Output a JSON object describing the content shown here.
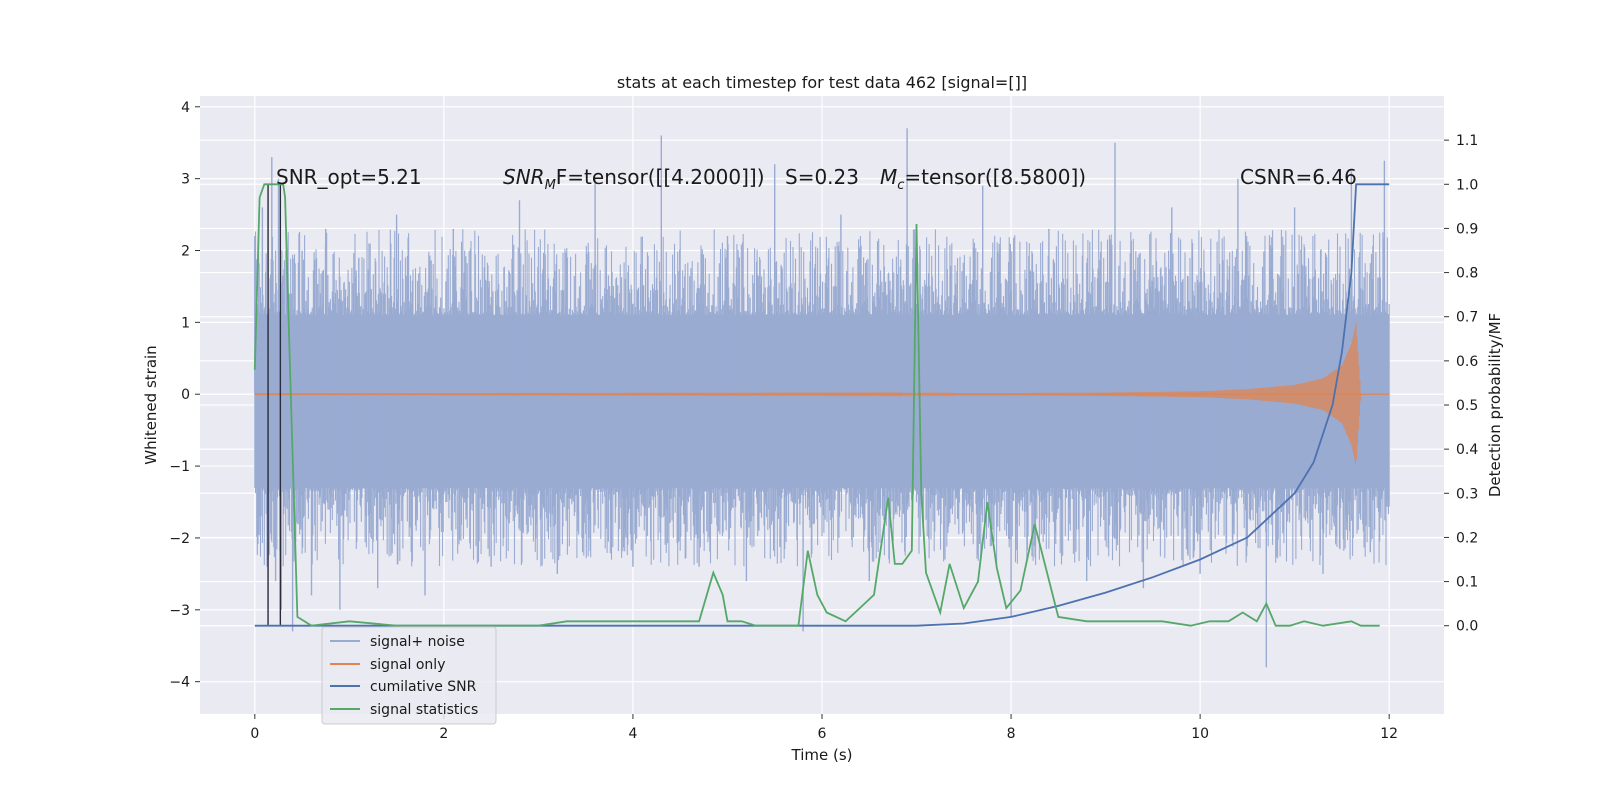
{
  "chart_data": {
    "type": "line",
    "title": "stats at each timestep for test data 462 [signal=[]]",
    "xlabel": "Time (s)",
    "ylabel": "Whitened strain",
    "ylabel_right": "Detection probability/MF",
    "xlim": [
      -0.58,
      12.58
    ],
    "ylim": [
      -4.45,
      4.15
    ],
    "ylim_right": [
      -0.2,
      1.2
    ],
    "x_ticks": [
      0,
      2,
      4,
      6,
      8,
      10,
      12
    ],
    "y_ticks": [
      -4,
      -3,
      -2,
      -1,
      0,
      1,
      2,
      3,
      4
    ],
    "y_right_ticks": [
      0.0,
      0.1,
      0.2,
      0.3,
      0.4,
      0.5,
      0.6,
      0.7,
      0.8,
      0.9,
      1.0,
      1.1
    ],
    "x_tick_labels": [
      "0",
      "2",
      "4",
      "6",
      "8",
      "10",
      "12"
    ],
    "y_tick_labels": [
      "−4",
      "−3",
      "−2",
      "−1",
      "0",
      "1",
      "2",
      "3",
      "4"
    ],
    "y_right_tick_labels": [
      "0.0",
      "0.1",
      "0.2",
      "0.3",
      "0.4",
      "0.5",
      "0.6",
      "0.7",
      "0.8",
      "0.9",
      "1.0",
      "1.1"
    ],
    "grid": true,
    "legend_position": "lower-left",
    "colors": {
      "background": "#eaeaf2",
      "grid": "#ffffff",
      "noise": "#9aabd2",
      "signal_only": "#dd8452",
      "cumulative": "#4c72b0",
      "statistics": "#55a868",
      "vline": "#2b2b3b"
    },
    "annotations": {
      "snr_opt": "SNR_opt=5.21",
      "snr_mf_prefix": "SNR",
      "snr_mf_sub": "M",
      "snr_mf_suffix": "F=tensor([[4.2000]])",
      "s_stat": "S=0.23",
      "mc_prefix": "M",
      "mc_sub": "c",
      "mc_suffix": "=tensor([8.5800])",
      "csnr": "CSNR=6.46"
    },
    "vertical_lines_x": [
      0.14,
      0.27
    ],
    "noise_band": {
      "x_range": [
        0,
        12
      ],
      "typical_envelope": [
        -1.3,
        1.1
      ],
      "peak_envelope": [
        -2.4,
        2.3
      ]
    },
    "series": [
      {
        "name": "signal+ noise",
        "axis": "left",
        "x": [
          0.0,
          0.04,
          0.08,
          0.13,
          0.18,
          0.22,
          0.25,
          0.28,
          0.33,
          0.4,
          0.5,
          0.6,
          0.75,
          0.9,
          1.1,
          1.3,
          1.5,
          1.8,
          2.1,
          2.5,
          2.8,
          3.2,
          3.6,
          4.0,
          4.3,
          4.7,
          5.0,
          5.2,
          5.5,
          5.8,
          6.2,
          6.5,
          6.9,
          7.3,
          7.7,
          8.0,
          8.4,
          8.8,
          9.1,
          9.4,
          9.7,
          10.0,
          10.4,
          10.7,
          11.0,
          11.3,
          11.6,
          11.8,
          11.95
        ],
        "values": [
          2.2,
          -1.9,
          2.6,
          -2.4,
          3.3,
          -2.6,
          3.0,
          -3.0,
          2.0,
          -3.3,
          2.0,
          -2.8,
          2.3,
          -3.0,
          1.9,
          -2.7,
          2.5,
          -2.8,
          2.3,
          -2.4,
          2.7,
          -2.5,
          3.0,
          -2.4,
          3.6,
          -2.4,
          2.2,
          -2.6,
          3.2,
          -3.3,
          2.5,
          -2.6,
          3.7,
          -2.3,
          2.9,
          -3.1,
          2.3,
          -2.6,
          3.5,
          -2.7,
          2.6,
          -2.5,
          3.0,
          -3.8,
          2.6,
          -2.5,
          3.1,
          -2.2,
          3.25
        ]
      },
      {
        "name": "signal only",
        "axis": "left",
        "x": [
          0,
          2,
          4,
          6,
          8,
          9,
          10,
          10.5,
          11,
          11.3,
          11.5,
          11.6,
          11.65,
          11.7,
          12
        ],
        "amplitude": [
          0.005,
          0.006,
          0.008,
          0.01,
          0.015,
          0.022,
          0.04,
          0.07,
          0.13,
          0.22,
          0.4,
          0.7,
          1.0,
          0.0,
          0.0
        ]
      },
      {
        "name": "cumilative SNR",
        "axis": "right",
        "x": [
          0,
          7,
          7.5,
          8,
          8.5,
          9,
          9.5,
          10,
          10.5,
          11,
          11.2,
          11.4,
          11.5,
          11.6,
          11.65,
          12
        ],
        "values": [
          0.0,
          0.0,
          0.005,
          0.02,
          0.045,
          0.075,
          0.11,
          0.15,
          0.2,
          0.3,
          0.37,
          0.5,
          0.62,
          0.8,
          1.0,
          1.0
        ]
      },
      {
        "name": "signal statistics",
        "axis": "right",
        "x": [
          0.0,
          0.05,
          0.1,
          0.17,
          0.3,
          0.32,
          0.37,
          0.45,
          0.6,
          1.0,
          1.5,
          2.0,
          2.5,
          3.0,
          3.3,
          3.6,
          4.0,
          4.3,
          4.7,
          4.85,
          4.95,
          5.0,
          5.15,
          5.3,
          5.5,
          5.75,
          5.85,
          5.95,
          6.05,
          6.25,
          6.4,
          6.55,
          6.7,
          6.77,
          6.85,
          6.95,
          7.0,
          7.05,
          7.1,
          7.25,
          7.35,
          7.5,
          7.65,
          7.75,
          7.85,
          7.95,
          8.1,
          8.25,
          8.5,
          8.8,
          9.0,
          9.3,
          9.6,
          9.9,
          10.1,
          10.3,
          10.45,
          10.6,
          10.7,
          10.8,
          10.95,
          11.1,
          11.3,
          11.6,
          11.7,
          11.9
        ],
        "values": [
          0.58,
          0.97,
          1.0,
          1.0,
          1.0,
          0.97,
          0.6,
          0.02,
          0.0,
          0.01,
          0.0,
          0.0,
          0.0,
          0.0,
          0.01,
          0.01,
          0.01,
          0.01,
          0.01,
          0.12,
          0.07,
          0.01,
          0.01,
          0.0,
          0.0,
          0.0,
          0.17,
          0.07,
          0.03,
          0.01,
          0.04,
          0.07,
          0.29,
          0.14,
          0.14,
          0.17,
          0.91,
          0.3,
          0.12,
          0.03,
          0.14,
          0.04,
          0.1,
          0.28,
          0.13,
          0.04,
          0.08,
          0.23,
          0.02,
          0.01,
          0.01,
          0.01,
          0.01,
          0.0,
          0.01,
          0.01,
          0.03,
          0.01,
          0.05,
          0.0,
          0.0,
          0.01,
          0.0,
          0.01,
          0.0,
          0.0
        ]
      }
    ]
  }
}
